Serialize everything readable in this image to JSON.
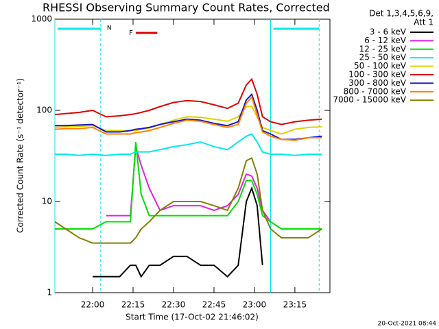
{
  "chart_data": {
    "type": "line",
    "title": "RHESSI Observing Summary Count Rates, Corrected",
    "xlabel": "Start Time (17-Oct-02 21:46:02)",
    "ylabel": "Corrected Count Rate (s⁻¹ detector⁻¹)",
    "legend_header": [
      "Det 1,3,4,5,6,9,",
      "Att 1"
    ],
    "footer": "20-Oct-2021 08:44",
    "log_y": true,
    "ylim": [
      1,
      1000
    ],
    "yticks": [
      1,
      10,
      100,
      1000
    ],
    "xlim": [
      "21:46",
      "23:28"
    ],
    "xticks": [
      "22:00",
      "22:15",
      "22:30",
      "22:45",
      "23:00",
      "23:15"
    ],
    "x": [
      "21:46",
      "21:50",
      "21:55",
      "22:00",
      "22:05",
      "22:10",
      "22:14",
      "22:16",
      "22:18",
      "22:21",
      "22:25",
      "22:30",
      "22:35",
      "22:40",
      "22:45",
      "22:50",
      "22:54",
      "22:57",
      "22:59",
      "23:01",
      "23:03",
      "23:06",
      "23:10",
      "23:15",
      "23:20",
      "23:25"
    ],
    "series": [
      {
        "name": "3 - 6 keV",
        "color": "#000000",
        "values": [
          null,
          null,
          null,
          1.5,
          1.5,
          1.5,
          2,
          2,
          1.5,
          2,
          2,
          2.5,
          2.5,
          2,
          2,
          1.5,
          2,
          10,
          14,
          9,
          2,
          null,
          null,
          null,
          null,
          null
        ]
      },
      {
        "name": "6 - 12 keV",
        "color": "#e020e0",
        "values": [
          null,
          null,
          null,
          null,
          7,
          7,
          7,
          40,
          25,
          14,
          8,
          9,
          9,
          9,
          8,
          9,
          12,
          20,
          19,
          14,
          8,
          6,
          null,
          null,
          null,
          null
        ]
      },
      {
        "name": "12 - 25 keV",
        "color": "#00e000",
        "values": [
          5,
          5,
          5,
          5,
          6,
          6,
          6,
          45,
          12,
          7,
          7,
          7,
          7,
          7,
          7,
          7,
          10,
          17,
          17,
          12,
          7,
          6,
          5,
          5,
          5,
          5
        ]
      },
      {
        "name": "25 - 50 keV",
        "color": "#00e8f0",
        "values": [
          33,
          33,
          32,
          33,
          32,
          33,
          33,
          35,
          35,
          35,
          37,
          40,
          42,
          45,
          40,
          37,
          45,
          52,
          55,
          45,
          35,
          33,
          33,
          32,
          33,
          33
        ]
      },
      {
        "name": "50 - 100 keV",
        "color": "#e0d000",
        "values": [
          65,
          66,
          67,
          68,
          60,
          60,
          60,
          60,
          62,
          64,
          70,
          78,
          85,
          84,
          80,
          76,
          85,
          110,
          110,
          85,
          65,
          60,
          55,
          62,
          65,
          66
        ]
      },
      {
        "name": "100 - 300 keV",
        "color": "#e00000",
        "values": [
          90,
          92,
          95,
          100,
          85,
          87,
          90,
          92,
          95,
          100,
          110,
          122,
          128,
          125,
          115,
          105,
          120,
          190,
          220,
          150,
          85,
          75,
          70,
          75,
          78,
          80
        ]
      },
      {
        "name": "300 - 800 keV",
        "color": "#1818c0",
        "values": [
          68,
          68,
          69,
          70,
          58,
          58,
          60,
          62,
          63,
          65,
          70,
          75,
          80,
          78,
          72,
          68,
          75,
          130,
          150,
          100,
          60,
          55,
          48,
          48,
          50,
          52
        ]
      },
      {
        "name": "800 - 7000 keV",
        "color": "#ff8000",
        "values": [
          62,
          63,
          63,
          65,
          55,
          55,
          55,
          57,
          58,
          60,
          65,
          72,
          78,
          76,
          70,
          65,
          70,
          120,
          140,
          90,
          58,
          52,
          48,
          47,
          50,
          50
        ]
      },
      {
        "name": "7000 - 15000 keV",
        "color": "#808000",
        "values": [
          6,
          5,
          4,
          3.5,
          3.5,
          3.5,
          3.5,
          4,
          5,
          6,
          8,
          10,
          10,
          10,
          9,
          8,
          14,
          28,
          30,
          20,
          8,
          5,
          4,
          4,
          4,
          5
        ]
      }
    ],
    "night_label": "N",
    "night_color": "#00e8f0",
    "night_intervals": [
      [
        "21:46",
        "22:03"
      ],
      [
        "23:06",
        "23:24"
      ]
    ],
    "flare_label": "F",
    "flare_color": "#e00000",
    "flare_interval": [
      "22:16",
      "22:24"
    ]
  }
}
